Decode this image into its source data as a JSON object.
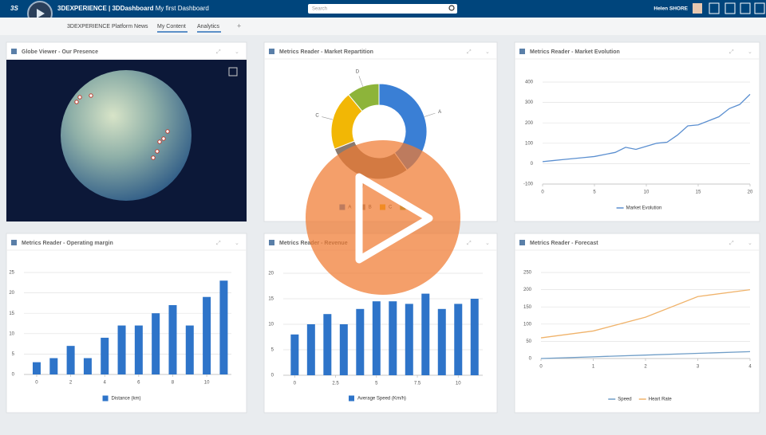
{
  "header": {
    "brand": "3DEXPERIENCE | 3DDashboard",
    "dashboard_name": "My first Dashboard",
    "search_placeholder": "Search",
    "user": "Helen SHORE"
  },
  "tabs": [
    "3DEXPERIENCE Platform News",
    "My Content",
    "Analytics"
  ],
  "widgets": [
    {
      "title": "Globe Viewer - Our Presence"
    },
    {
      "title": "Metrics Reader - Market Repartition",
      "chart": {
        "type": "pie",
        "categories": [
          "A",
          "B",
          "C",
          "D"
        ],
        "values": [
          40,
          29,
          20,
          11
        ],
        "colors": [
          "#3a7fd5",
          "#8a7a70",
          "#f2b705",
          "#8db43a"
        ],
        "legend": "bottom"
      }
    },
    {
      "title": "Metrics Reader - Market Evolution",
      "chart": {
        "type": "line",
        "xlim": [
          0,
          20
        ],
        "xticks": [
          0,
          5,
          10,
          15,
          20
        ],
        "ylim": [
          -100,
          400
        ],
        "yticks": [
          -100,
          0,
          100,
          200,
          300,
          400
        ],
        "grid": true,
        "legend": "bottom",
        "series": [
          {
            "name": "Market Evolution",
            "color": "#5b8fd0",
            "x": [
              0,
              1,
              2,
              3,
              4,
              5,
              6,
              7,
              8,
              9,
              10,
              11,
              12,
              13,
              14,
              15,
              16,
              17,
              18,
              19,
              20
            ],
            "values": [
              10,
              15,
              20,
              25,
              30,
              35,
              45,
              55,
              80,
              70,
              85,
              100,
              105,
              140,
              185,
              190,
              210,
              230,
              270,
              290,
              340
            ]
          }
        ]
      }
    },
    {
      "title": "Metrics Reader - Operating margin",
      "chart": {
        "type": "bar",
        "xlim": [
          -0.75,
          11.45
        ],
        "xticks": [
          0,
          2,
          4,
          6,
          8,
          10
        ],
        "ylim": [
          0,
          25
        ],
        "yticks": [
          0,
          5,
          10,
          15,
          20,
          25
        ],
        "grid": true,
        "legend": "bottom",
        "series": [
          {
            "name": "Distance (km)",
            "color": "#2e74c9",
            "x": [
              0,
              1,
              2,
              3,
              4,
              5,
              6,
              7,
              8,
              9,
              10,
              11
            ],
            "values": [
              3,
              4,
              7,
              4,
              9,
              12,
              12,
              15,
              17,
              12,
              19,
              23
            ]
          }
        ]
      }
    },
    {
      "title": "Metrics Reader - Revenue",
      "chart": {
        "type": "bar",
        "xlim": [
          -0.7,
          11.5
        ],
        "xticks": [
          0,
          2.5,
          5,
          7.5,
          10
        ],
        "ylim": [
          0,
          20
        ],
        "yticks": [
          0,
          5,
          10,
          15,
          20
        ],
        "grid": true,
        "legend": "bottom",
        "series": [
          {
            "name": "Average Speed (Km/h)",
            "color": "#2e74c9",
            "x": [
              0,
              1,
              2,
              3,
              4,
              5,
              6,
              7,
              8,
              9,
              10,
              11
            ],
            "values": [
              8,
              10,
              12,
              10,
              13,
              14.5,
              14.5,
              14,
              16,
              13,
              14,
              15
            ]
          }
        ]
      }
    },
    {
      "title": "Metrics Reader - Forecast",
      "chart": {
        "type": "line",
        "xlim": [
          0,
          4
        ],
        "xticks": [
          0,
          1,
          2,
          3,
          4
        ],
        "ylim": [
          0,
          250
        ],
        "yticks": [
          0,
          50,
          100,
          150,
          200,
          250
        ],
        "grid": true,
        "legend": "bottom",
        "series": [
          {
            "name": "Speed",
            "color": "#6f9dc7",
            "x": [
              0,
              1,
              2,
              3,
              4
            ],
            "values": [
              0,
              5,
              10,
              15,
              20
            ]
          },
          {
            "name": "Heart Rate",
            "color": "#f0b36b",
            "x": [
              0,
              1,
              2,
              3,
              4
            ],
            "values": [
              60,
              80,
              120,
              180,
              200
            ]
          }
        ]
      }
    }
  ]
}
